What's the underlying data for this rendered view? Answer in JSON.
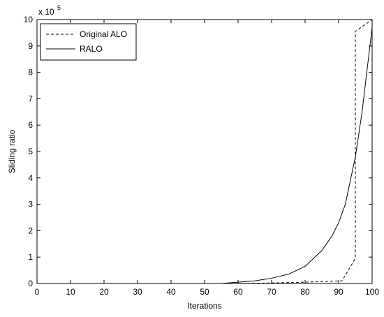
{
  "chart_data": {
    "type": "line",
    "xlabel": "Iterations",
    "ylabel": "Sliding ratio",
    "y_multiplier": {
      "base": "x 10",
      "exponent": "5"
    },
    "xlim": [
      0,
      100
    ],
    "xticks": [
      0,
      10,
      20,
      30,
      40,
      50,
      60,
      70,
      80,
      90,
      100
    ],
    "ylim": [
      0,
      10
    ],
    "yticks": [
      0,
      1,
      2,
      3,
      4,
      5,
      6,
      7,
      8,
      9,
      10
    ],
    "grid": false,
    "legend": "upper-left",
    "series": [
      {
        "name": "Original ALO",
        "color": "#000000",
        "dash": "4,3",
        "x": [
          0,
          60,
          70,
          80,
          91,
          95,
          95,
          100
        ],
        "values": [
          0,
          0,
          0.02,
          0.05,
          0.1,
          0.95,
          9.55,
          10
        ]
      },
      {
        "name": "RALO",
        "color": "#000000",
        "dash": "none",
        "x": [
          0,
          55,
          60,
          65,
          70,
          75,
          80,
          85,
          88,
          90,
          92,
          95,
          97,
          100
        ],
        "values": [
          0,
          0,
          0.05,
          0.1,
          0.2,
          0.35,
          0.65,
          1.25,
          1.8,
          2.3,
          3.0,
          4.8,
          6.5,
          9.7
        ]
      }
    ]
  }
}
